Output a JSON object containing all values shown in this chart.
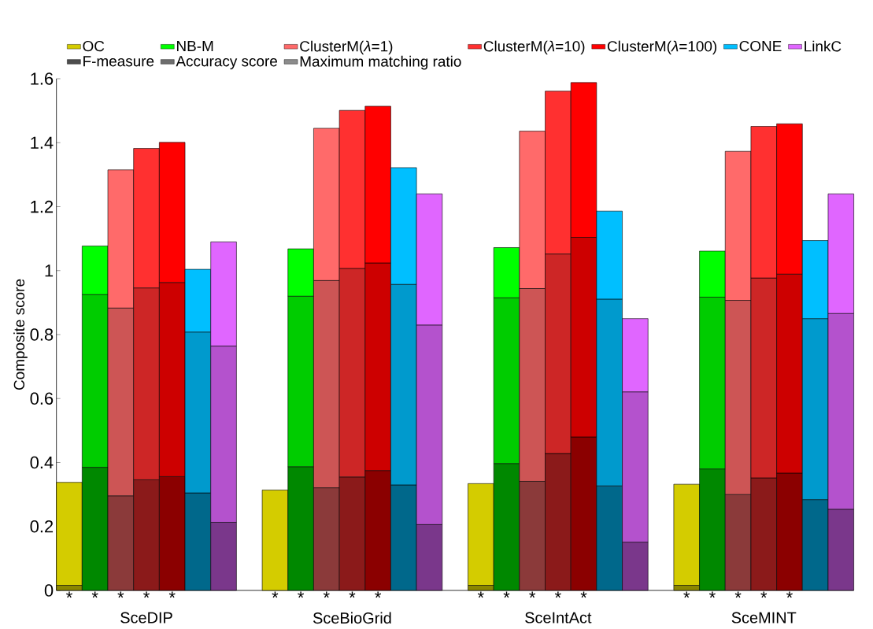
{
  "chart_data": {
    "type": "bar",
    "stacked": true,
    "ylabel": "Composite score",
    "legend": "top",
    "ylim": [
      0,
      1.6
    ],
    "yticks": [
      0,
      0.2,
      0.4,
      0.6,
      0.8,
      1,
      1.2,
      1.4,
      1.6
    ],
    "categories": [
      "*",
      "*",
      "*",
      "*",
      "*",
      null,
      null,
      null,
      "*",
      "*",
      "*",
      "*",
      "*",
      null,
      null,
      null,
      "*",
      "*",
      "*",
      "*",
      "*",
      null,
      null,
      null,
      "*",
      "*",
      "*",
      "*",
      "*",
      null,
      null
    ],
    "annotations": [
      "SceDIP",
      "SceBioGrid",
      "SceIntAct",
      "SceMINT"
    ],
    "series": [
      {
        "color": "#8a8600",
        "values": [
          0.016,
          null,
          null,
          null,
          null,
          null,
          null,
          null,
          null,
          null,
          null,
          null,
          null,
          null,
          null,
          null,
          0.016,
          null,
          null,
          null,
          null,
          null,
          null,
          null,
          0.016,
          null,
          null,
          null,
          null,
          null,
          null
        ]
      },
      {
        "name": "OC",
        "color": "#d4cc00",
        "values": [
          0.322,
          null,
          null,
          null,
          null,
          null,
          null,
          null,
          0.314,
          null,
          null,
          null,
          null,
          null,
          null,
          null,
          0.318,
          null,
          null,
          null,
          null,
          null,
          null,
          null,
          0.316,
          null,
          null,
          null,
          null,
          null,
          null
        ]
      },
      {
        "color": "#008800",
        "values": [
          null,
          0.385,
          null,
          null,
          null,
          null,
          null,
          null,
          null,
          0.387,
          null,
          null,
          null,
          null,
          null,
          null,
          null,
          0.397,
          null,
          null,
          null,
          null,
          null,
          null,
          null,
          0.38,
          null,
          null,
          null,
          null,
          null
        ]
      },
      {
        "color": "#00cc00",
        "values": [
          null,
          0.54,
          null,
          null,
          null,
          null,
          null,
          null,
          null,
          0.533,
          null,
          null,
          null,
          null,
          null,
          null,
          null,
          0.518,
          null,
          null,
          null,
          null,
          null,
          null,
          null,
          0.537,
          null,
          null,
          null,
          null,
          null
        ]
      },
      {
        "name": "NB-M",
        "color": "#00ff00",
        "values": [
          null,
          0.152,
          null,
          null,
          null,
          null,
          null,
          null,
          null,
          0.148,
          null,
          null,
          null,
          null,
          null,
          null,
          null,
          0.157,
          null,
          null,
          null,
          null,
          null,
          null,
          null,
          0.144,
          null,
          null,
          null,
          null,
          null
        ]
      },
      {
        "color": "#8b3a3a",
        "values": [
          null,
          null,
          0.296,
          null,
          null,
          null,
          null,
          null,
          null,
          null,
          0.321,
          null,
          null,
          null,
          null,
          null,
          null,
          null,
          0.341,
          null,
          null,
          null,
          null,
          null,
          null,
          null,
          0.3,
          null,
          null,
          null,
          null
        ]
      },
      {
        "color": "#cd5555",
        "values": [
          null,
          null,
          0.587,
          null,
          null,
          null,
          null,
          null,
          null,
          null,
          0.648,
          null,
          null,
          null,
          null,
          null,
          null,
          null,
          0.603,
          null,
          null,
          null,
          null,
          null,
          null,
          null,
          0.607,
          null,
          null,
          null,
          null
        ]
      },
      {
        "name": "ClusterM(*λ*=1)",
        "color": "#ff6a6a",
        "values": [
          null,
          null,
          0.432,
          null,
          null,
          null,
          null,
          null,
          null,
          null,
          0.476,
          null,
          null,
          null,
          null,
          null,
          null,
          null,
          0.492,
          null,
          null,
          null,
          null,
          null,
          null,
          null,
          0.466,
          null,
          null,
          null,
          null
        ]
      },
      {
        "color": "#8b1a1a",
        "values": [
          null,
          null,
          null,
          0.346,
          null,
          null,
          null,
          null,
          null,
          null,
          null,
          0.355,
          null,
          null,
          null,
          null,
          null,
          null,
          null,
          0.428,
          null,
          null,
          null,
          null,
          null,
          null,
          null,
          0.352,
          null,
          null,
          null
        ]
      },
      {
        "color": "#cd2626",
        "values": [
          null,
          null,
          null,
          0.6,
          null,
          null,
          null,
          null,
          null,
          null,
          null,
          0.652,
          null,
          null,
          null,
          null,
          null,
          null,
          null,
          0.624,
          null,
          null,
          null,
          null,
          null,
          null,
          null,
          0.625,
          null,
          null,
          null
        ]
      },
      {
        "name": "ClusterM(*λ*=10)",
        "color": "#ff3030",
        "values": [
          null,
          null,
          null,
          0.436,
          null,
          null,
          null,
          null,
          null,
          null,
          null,
          0.494,
          null,
          null,
          null,
          null,
          null,
          null,
          null,
          0.509,
          null,
          null,
          null,
          null,
          null,
          null,
          null,
          0.474,
          null,
          null,
          null
        ]
      },
      {
        "color": "#8b0000",
        "values": [
          null,
          null,
          null,
          null,
          0.356,
          null,
          null,
          null,
          null,
          null,
          null,
          null,
          0.375,
          null,
          null,
          null,
          null,
          null,
          null,
          null,
          0.48,
          null,
          null,
          null,
          null,
          null,
          null,
          null,
          0.367,
          null,
          null
        ]
      },
      {
        "color": "#cd0000",
        "values": [
          null,
          null,
          null,
          null,
          0.607,
          null,
          null,
          null,
          null,
          null,
          null,
          null,
          0.649,
          null,
          null,
          null,
          null,
          null,
          null,
          null,
          0.624,
          null,
          null,
          null,
          null,
          null,
          null,
          null,
          0.622,
          null,
          null
        ]
      },
      {
        "name": "ClusterM(*λ*=100)",
        "color": "#ff0000",
        "values": [
          null,
          null,
          null,
          null,
          0.438,
          null,
          null,
          null,
          null,
          null,
          null,
          null,
          0.49,
          null,
          null,
          null,
          null,
          null,
          null,
          null,
          0.484,
          null,
          null,
          null,
          null,
          null,
          null,
          null,
          0.47,
          null,
          null
        ]
      },
      {
        "color": "#00688b",
        "values": [
          null,
          null,
          null,
          null,
          null,
          0.305,
          null,
          null,
          null,
          null,
          null,
          null,
          null,
          0.33,
          null,
          null,
          null,
          null,
          null,
          null,
          null,
          0.327,
          null,
          null,
          null,
          null,
          null,
          null,
          null,
          0.284,
          null
        ]
      },
      {
        "color": "#009acd",
        "values": [
          null,
          null,
          null,
          null,
          null,
          0.503,
          null,
          null,
          null,
          null,
          null,
          null,
          null,
          0.627,
          null,
          null,
          null,
          null,
          null,
          null,
          null,
          0.584,
          null,
          null,
          null,
          null,
          null,
          null,
          null,
          0.566,
          null
        ]
      },
      {
        "name": "CONE",
        "color": "#00bfff",
        "values": [
          null,
          null,
          null,
          null,
          null,
          0.196,
          null,
          null,
          null,
          null,
          null,
          null,
          null,
          0.365,
          null,
          null,
          null,
          null,
          null,
          null,
          null,
          0.275,
          null,
          null,
          null,
          null,
          null,
          null,
          null,
          0.244,
          null
        ]
      },
      {
        "color": "#7a378b",
        "values": [
          null,
          null,
          null,
          null,
          null,
          null,
          0.213,
          null,
          null,
          null,
          null,
          null,
          null,
          null,
          0.206,
          null,
          null,
          null,
          null,
          null,
          null,
          null,
          0.151,
          null,
          null,
          null,
          null,
          null,
          null,
          null,
          0.254
        ]
      },
      {
        "color": "#b452cd",
        "values": [
          null,
          null,
          null,
          null,
          null,
          null,
          0.551,
          null,
          null,
          null,
          null,
          null,
          null,
          null,
          0.624,
          null,
          null,
          null,
          null,
          null,
          null,
          null,
          0.47,
          null,
          null,
          null,
          null,
          null,
          null,
          null,
          0.612
        ]
      },
      {
        "name": "LinkC",
        "color": "#e066ff",
        "values": [
          null,
          null,
          null,
          null,
          null,
          null,
          0.326,
          null,
          null,
          null,
          null,
          null,
          null,
          null,
          0.41,
          null,
          null,
          null,
          null,
          null,
          null,
          null,
          0.229,
          null,
          null,
          null,
          null,
          null,
          null,
          null,
          0.374
        ]
      },
      {
        "name": "F-measure",
        "color": "#4d4d4d",
        "values": [
          null,
          null,
          null,
          null,
          null,
          null,
          null,
          null,
          null,
          null,
          null,
          null,
          null,
          null,
          null,
          null,
          null,
          null,
          null,
          null,
          null,
          null,
          null,
          null,
          null,
          null,
          null,
          null,
          null,
          null,
          null
        ]
      },
      {
        "name": "Accuracy score",
        "color": "#6e6e6e",
        "values": [
          null,
          null,
          null,
          null,
          null,
          null,
          null,
          null,
          null,
          null,
          null,
          null,
          null,
          null,
          null,
          null,
          null,
          null,
          null,
          null,
          null,
          null,
          null,
          null,
          null,
          null,
          null,
          null,
          null,
          null,
          null
        ]
      },
      {
        "name": "Maximum matching ratio",
        "color": "#8c8c8c",
        "values": [
          null,
          null,
          null,
          null,
          null,
          null,
          null,
          null,
          null,
          null,
          null,
          null,
          null,
          null,
          null,
          null,
          null,
          null,
          null,
          null,
          null,
          null,
          null,
          null,
          null,
          null,
          null,
          null,
          null,
          null,
          null
        ]
      }
    ]
  }
}
